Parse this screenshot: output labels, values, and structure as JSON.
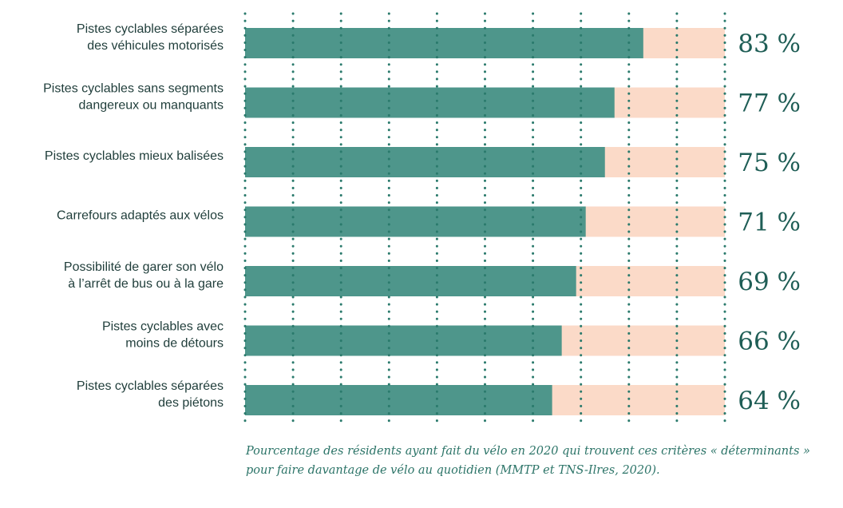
{
  "chart_data": {
    "type": "bar",
    "orientation": "horizontal",
    "stacked_with_remainder": true,
    "categories": [
      [
        "Pistes cyclables séparées",
        "des véhicules motorisés"
      ],
      [
        "Pistes cyclables sans segments",
        "dangereux ou manquants"
      ],
      [
        "Pistes cyclables mieux balisées"
      ],
      [
        "Carrefours adaptés aux vélos"
      ],
      [
        "Possibilité de garer son vélo",
        "à l’arrêt de bus ou à la gare"
      ],
      [
        "Pistes cyclables avec",
        "moins de détours"
      ],
      [
        "Pistes cyclables séparées",
        "des piétons"
      ]
    ],
    "values": [
      83,
      77,
      75,
      71,
      69,
      66,
      64
    ],
    "value_labels": [
      "83 %",
      "77 %",
      "75 %",
      "71 %",
      "69 %",
      "66 %",
      "64 %"
    ],
    "xlim": [
      0,
      100
    ],
    "grid": "vertical-dotted",
    "colors": {
      "value": "#4e968b",
      "remainder": "#fbdac8",
      "grid": "#2a7a6c",
      "value_text": "#1f5e56"
    }
  },
  "caption": {
    "line1": "Pourcentage des résidents ayant fait du vélo en 2020 qui trouvent ces critères « déterminants »",
    "line2": "pour faire davantage de vélo au quotidien (MMTP et TNS-Ilres, 2020)."
  }
}
